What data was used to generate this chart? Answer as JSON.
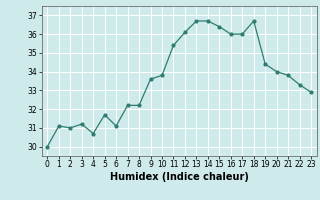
{
  "x": [
    0,
    1,
    2,
    3,
    4,
    5,
    6,
    7,
    8,
    9,
    10,
    11,
    12,
    13,
    14,
    15,
    16,
    17,
    18,
    19,
    20,
    21,
    22,
    23
  ],
  "y": [
    30.0,
    31.1,
    31.0,
    31.2,
    30.7,
    31.7,
    31.1,
    32.2,
    32.2,
    33.6,
    33.8,
    35.4,
    36.1,
    36.7,
    36.7,
    36.4,
    36.0,
    36.0,
    36.7,
    34.4,
    34.0,
    33.8,
    33.3,
    32.9
  ],
  "line_color": "#2e7d6e",
  "marker": "o",
  "marker_size": 2.0,
  "bg_color": "#ceeaea",
  "grid_color": "#ffffff",
  "xlabel": "Humidex (Indice chaleur)",
  "ylim": [
    29.5,
    37.5
  ],
  "xlim": [
    -0.5,
    23.5
  ],
  "yticks": [
    30,
    31,
    32,
    33,
    34,
    35,
    36,
    37
  ],
  "xticks": [
    0,
    1,
    2,
    3,
    4,
    5,
    6,
    7,
    8,
    9,
    10,
    11,
    12,
    13,
    14,
    15,
    16,
    17,
    18,
    19,
    20,
    21,
    22,
    23
  ],
  "tick_fontsize": 5.5,
  "xlabel_fontsize": 7.0,
  "line_width": 0.9
}
